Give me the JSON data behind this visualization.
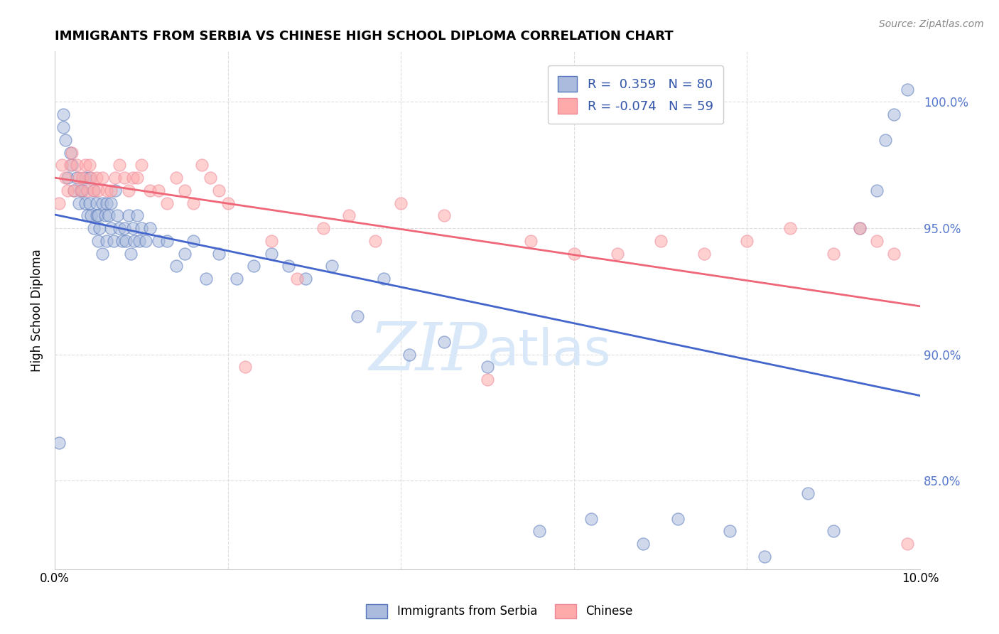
{
  "title": "IMMIGRANTS FROM SERBIA VS CHINESE HIGH SCHOOL DIPLOMA CORRELATION CHART",
  "source": "Source: ZipAtlas.com",
  "ylabel": "High School Diploma",
  "xlim": [
    0.0,
    10.0
  ],
  "ylim": [
    81.5,
    102.0
  ],
  "yticks": [
    85,
    90,
    95,
    100
  ],
  "ytick_labels": [
    "85.0%",
    "90.0%",
    "95.0%",
    "100.0%"
  ],
  "xtick_positions": [
    0,
    2,
    4,
    6,
    8,
    10
  ],
  "xtick_labels": [
    "0.0%",
    "",
    "",
    "",
    "",
    "10.0%"
  ],
  "blue_face": "#AABBDD",
  "blue_edge": "#5577BB",
  "pink_face": "#FFAAAA",
  "pink_edge": "#EE8899",
  "line_blue_color": "#4466CC",
  "line_pink_color": "#EE6677",
  "watermark_color": "#D8E8F8",
  "grid_color": "#DDDDDD",
  "ytick_color": "#5577CC",
  "legend_label_color": "#3355AA",
  "r_blue": 0.359,
  "n_blue": 80,
  "r_pink": -0.074,
  "n_pink": 59,
  "serbia_x": [
    0.05,
    0.1,
    0.1,
    0.12,
    0.15,
    0.18,
    0.2,
    0.22,
    0.25,
    0.28,
    0.3,
    0.32,
    0.35,
    0.35,
    0.38,
    0.4,
    0.4,
    0.42,
    0.45,
    0.45,
    0.48,
    0.48,
    0.5,
    0.5,
    0.52,
    0.55,
    0.55,
    0.58,
    0.6,
    0.6,
    0.62,
    0.65,
    0.65,
    0.68,
    0.7,
    0.72,
    0.75,
    0.78,
    0.8,
    0.82,
    0.85,
    0.88,
    0.9,
    0.92,
    0.95,
    0.98,
    1.0,
    1.05,
    1.1,
    1.2,
    1.3,
    1.4,
    1.5,
    1.6,
    1.75,
    1.9,
    2.1,
    2.3,
    2.5,
    2.7,
    2.9,
    3.2,
    3.5,
    3.8,
    4.1,
    4.5,
    5.0,
    5.6,
    6.2,
    6.8,
    7.2,
    7.8,
    8.2,
    8.7,
    9.0,
    9.3,
    9.5,
    9.6,
    9.7,
    9.85
  ],
  "serbia_y": [
    86.5,
    99.5,
    99.0,
    98.5,
    97.0,
    98.0,
    97.5,
    96.5,
    97.0,
    96.0,
    96.5,
    96.5,
    97.0,
    96.0,
    95.5,
    97.0,
    96.0,
    95.5,
    96.5,
    95.0,
    96.0,
    95.5,
    95.5,
    94.5,
    95.0,
    96.0,
    94.0,
    95.5,
    96.0,
    94.5,
    95.5,
    96.0,
    95.0,
    94.5,
    96.5,
    95.5,
    95.0,
    94.5,
    95.0,
    94.5,
    95.5,
    94.0,
    95.0,
    94.5,
    95.5,
    94.5,
    95.0,
    94.5,
    95.0,
    94.5,
    94.5,
    93.5,
    94.0,
    94.5,
    93.0,
    94.0,
    93.0,
    93.5,
    94.0,
    93.5,
    93.0,
    93.5,
    91.5,
    93.0,
    90.0,
    90.5,
    89.5,
    83.0,
    83.5,
    82.5,
    83.5,
    83.0,
    82.0,
    84.5,
    83.0,
    95.0,
    96.5,
    98.5,
    99.5,
    100.5
  ],
  "chinese_x": [
    0.05,
    0.08,
    0.12,
    0.15,
    0.18,
    0.2,
    0.22,
    0.25,
    0.28,
    0.3,
    0.32,
    0.35,
    0.38,
    0.4,
    0.42,
    0.45,
    0.48,
    0.5,
    0.55,
    0.6,
    0.65,
    0.7,
    0.75,
    0.8,
    0.85,
    0.9,
    0.95,
    1.0,
    1.1,
    1.2,
    1.3,
    1.4,
    1.5,
    1.6,
    1.7,
    1.8,
    1.9,
    2.0,
    2.2,
    2.5,
    2.8,
    3.1,
    3.4,
    3.7,
    4.0,
    4.5,
    5.0,
    5.5,
    6.0,
    6.5,
    7.0,
    7.5,
    8.0,
    8.5,
    9.0,
    9.3,
    9.5,
    9.7,
    9.85
  ],
  "chinese_y": [
    96.0,
    97.5,
    97.0,
    96.5,
    97.5,
    98.0,
    96.5,
    97.5,
    97.0,
    96.5,
    97.0,
    97.5,
    96.5,
    97.5,
    97.0,
    96.5,
    97.0,
    96.5,
    97.0,
    96.5,
    96.5,
    97.0,
    97.5,
    97.0,
    96.5,
    97.0,
    97.0,
    97.5,
    96.5,
    96.5,
    96.0,
    97.0,
    96.5,
    96.0,
    97.5,
    97.0,
    96.5,
    96.0,
    89.5,
    94.5,
    93.0,
    95.0,
    95.5,
    94.5,
    96.0,
    95.5,
    89.0,
    94.5,
    94.0,
    94.0,
    94.5,
    94.0,
    94.5,
    95.0,
    94.0,
    95.0,
    94.5,
    94.0,
    82.5
  ]
}
